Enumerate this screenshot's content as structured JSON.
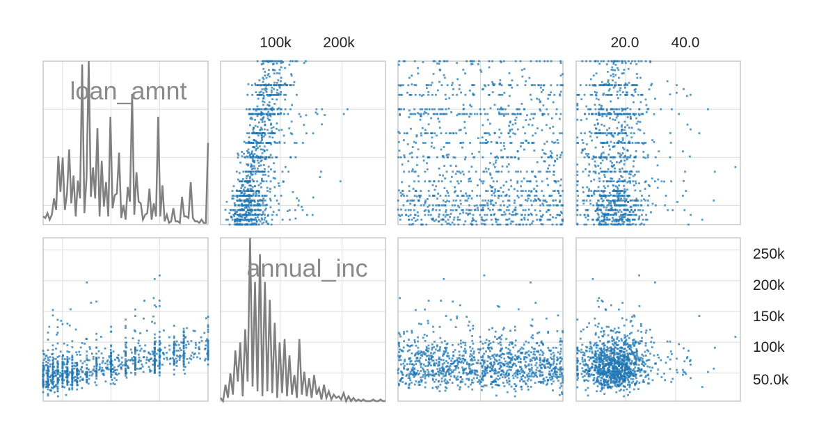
{
  "chart_data": {
    "type": "scatter",
    "kind": "scatter-matrix",
    "row_variables": [
      "loan_amnt",
      "annual_inc"
    ],
    "diagonal_labels": [
      "loan_amnt",
      "annual_inc"
    ],
    "point_color": "#1f77b4",
    "line_color": "#808080",
    "grid": true,
    "axes": {
      "loan_amnt": {
        "range": [
          1000,
          35000
        ]
      },
      "annual_inc": {
        "range": [
          4000,
          270000
        ]
      },
      "col3": {
        "range": [
          0,
          1
        ]
      },
      "col4": {
        "range": [
          0,
          66
        ]
      }
    },
    "top_tick_labels": {
      "annual_inc": [
        "100k",
        "200k"
      ],
      "col4": [
        "20.0",
        "40.0"
      ]
    },
    "top_tick_values": {
      "annual_inc": [
        100000,
        200000
      ],
      "col4": [
        20,
        40
      ]
    },
    "right_tick_labels": [
      "250k",
      "200k",
      "150k",
      "100k",
      "50.0k"
    ],
    "right_tick_values": [
      250000,
      200000,
      150000,
      100000,
      50000
    ],
    "loan_amnt_line": [
      0.05,
      0.04,
      0.07,
      0.03,
      0.06,
      0.16,
      0.09,
      0.42,
      0.2,
      0.41,
      0.09,
      0.19,
      0.46,
      0.13,
      0.3,
      0.05,
      0.27,
      0.16,
      0.98,
      0.07,
      0.29,
      1.0,
      0.17,
      0.35,
      0.16,
      0.59,
      0.05,
      0.39,
      0.11,
      0.26,
      0.05,
      0.66,
      0.1,
      0.18,
      0.19,
      0.44,
      0.04,
      0.12,
      0.03,
      0.23,
      0.14,
      0.8,
      0.06,
      0.32,
      0.14,
      0.13,
      0.03,
      0.06,
      0.07,
      0.22,
      0.03,
      0.13,
      0.05,
      0.66,
      0.05,
      0.24,
      0.02,
      0.06,
      0.01,
      0.02,
      0.1,
      0.02,
      0.02,
      0.01,
      0.17,
      0.05,
      0.05,
      0.04,
      0.26,
      0.04,
      0.02,
      0.02,
      0.01,
      0.03,
      0.01,
      0.01,
      0.5
    ],
    "annual_inc_line": [
      0.02,
      0.0,
      0.1,
      0.02,
      0.17,
      0.04,
      0.31,
      0.12,
      0.36,
      0.03,
      0.44,
      0.12,
      1.0,
      0.09,
      0.73,
      0.06,
      0.9,
      0.03,
      0.73,
      0.06,
      0.62,
      0.05,
      0.48,
      0.02,
      0.36,
      0.05,
      0.38,
      0.03,
      0.28,
      0.04,
      0.16,
      0.02,
      0.38,
      0.04,
      0.18,
      0.03,
      0.14,
      0.02,
      0.16,
      0.04,
      0.08,
      0.01,
      0.1,
      0.02,
      0.06,
      0.01,
      0.04,
      0.02,
      0.03,
      0.01,
      0.05,
      0.0,
      0.03,
      0.0,
      0.02,
      0.0,
      0.01,
      0.0,
      0.01,
      0.0,
      0.0,
      0.0,
      0.01,
      0.0,
      0.0,
      0.01,
      0.0,
      0.0
    ],
    "scatter_samples": {
      "loan_amnt_vs_annual_inc": {
        "n": 1200,
        "note_loan_amnt_range": [
          1000,
          35000
        ],
        "note_annual_inc_range": [
          4000,
          270000
        ]
      },
      "loan_amnt_vs_col3": {
        "n": 1200
      },
      "loan_amnt_vs_col4": {
        "n": 1200
      },
      "annual_inc_vs_loan_amnt": {
        "n": 1200
      },
      "annual_inc_vs_col3": {
        "n": 1200
      },
      "annual_inc_vs_col4": {
        "n": 1200
      }
    }
  }
}
